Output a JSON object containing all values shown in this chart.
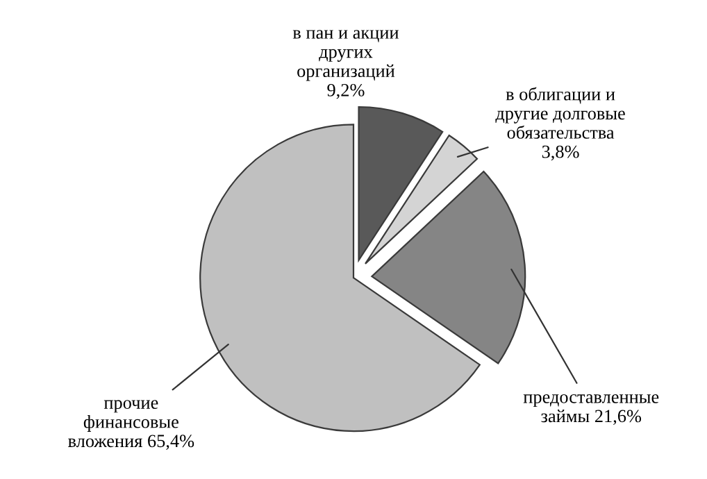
{
  "chart_data": {
    "type": "pie",
    "categories": [
      "в пан и акции\nдругих\nорганизаций",
      "в облигации и\nдругие долговые\nобязательства",
      "предоставленные\nзаймы",
      "прочие\nфинансовые\nвложения"
    ],
    "values": [
      9.2,
      3.8,
      21.6,
      65.4
    ],
    "value_labels": [
      "9,2%",
      "3,8%",
      "21,6%",
      "65,4%"
    ],
    "colors": [
      "#595959",
      "#d4d4d4",
      "#858585",
      "#c0c0c0"
    ],
    "legend": false
  }
}
